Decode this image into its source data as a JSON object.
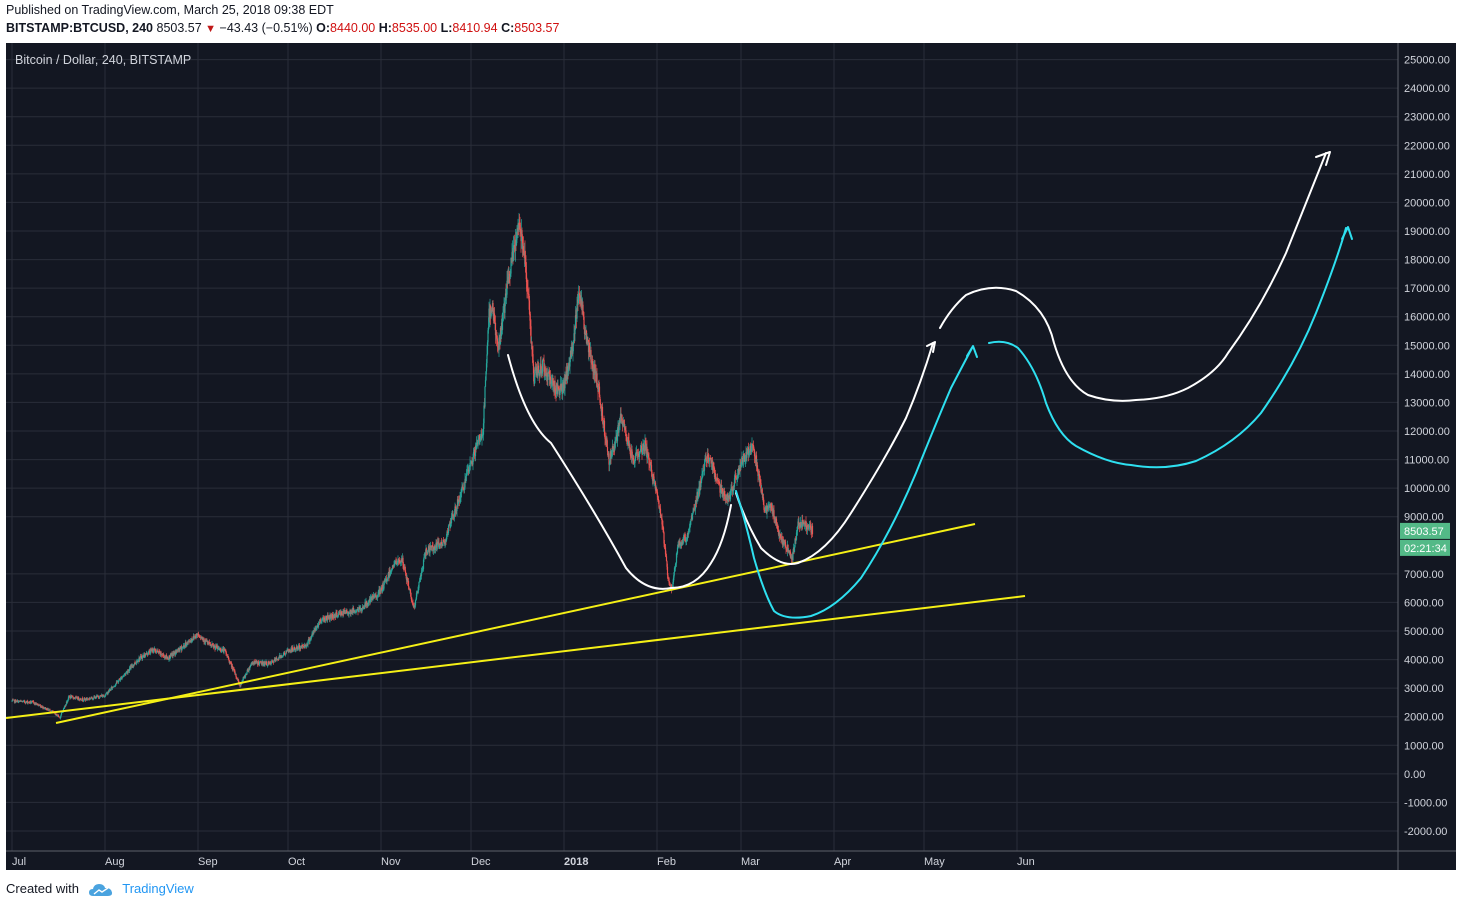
{
  "header": {
    "published": "Published on TradingView.com, March 25, 2018 09:38 EDT",
    "symbol": "BITSTAMP:BTCUSD, 240",
    "last": "8503.57",
    "change": "−43.43 (−0.51%)",
    "open_label": "O:",
    "open": "8440.00",
    "high_label": "H:",
    "high": "8535.00",
    "low_label": "L:",
    "low": "8410.94",
    "close_label": "C:",
    "close": "8503.57"
  },
  "footer": {
    "created_with": "Created with",
    "brand": "TradingView"
  },
  "colors": {
    "bg": "#131722",
    "up": "#26a69a",
    "down": "#ef5350",
    "yellow": "#f5f016",
    "cyan": "#2ee0f0",
    "white": "#ffffff",
    "price_tag": "#53b987"
  },
  "chart_data": {
    "type": "candlestick",
    "title": "Bitcoin / Dollar, 240, BITSTAMP",
    "ylim": [
      -2700,
      25300
    ],
    "y_ticks": [
      "25000.00",
      "24000.00",
      "23000.00",
      "22000.00",
      "21000.00",
      "20000.00",
      "19000.00",
      "18000.00",
      "17000.00",
      "16000.00",
      "15000.00",
      "14000.00",
      "13000.00",
      "12000.00",
      "11000.00",
      "10000.00",
      "9000.00",
      "7000.00",
      "6000.00",
      "5000.00",
      "4000.00",
      "3000.00",
      "2000.00",
      "1000.00",
      "0.00",
      "-1000.00",
      "-2000.00"
    ],
    "x_ticks": [
      {
        "label": "Jul",
        "date": "2017-07-01"
      },
      {
        "label": "Aug",
        "date": "2017-08-01"
      },
      {
        "label": "Sep",
        "date": "2017-09-01"
      },
      {
        "label": "Oct",
        "date": "2017-10-01"
      },
      {
        "label": "Nov",
        "date": "2017-11-01"
      },
      {
        "label": "Dec",
        "date": "2017-12-01"
      },
      {
        "label": "2018",
        "date": "2018-01-01",
        "bold": true
      },
      {
        "label": "Feb",
        "date": "2018-02-01"
      },
      {
        "label": "Mar",
        "date": "2018-03-01"
      },
      {
        "label": "Apr",
        "date": "2018-04-01"
      },
      {
        "label": "May",
        "date": "2018-05-01"
      },
      {
        "label": "Jun",
        "date": "2018-06-01"
      }
    ],
    "price_tag": "8503.57",
    "countdown": "02:21:34",
    "price_path": [
      [
        "2017-07-01",
        2550
      ],
      [
        "2017-07-08",
        2500
      ],
      [
        "2017-07-14",
        2200
      ],
      [
        "2017-07-17",
        1980
      ],
      [
        "2017-07-20",
        2700
      ],
      [
        "2017-07-25",
        2600
      ],
      [
        "2017-08-01",
        2750
      ],
      [
        "2017-08-05",
        3200
      ],
      [
        "2017-08-12",
        4000
      ],
      [
        "2017-08-17",
        4350
      ],
      [
        "2017-08-22",
        4050
      ],
      [
        "2017-08-27",
        4450
      ],
      [
        "2017-09-01",
        4900
      ],
      [
        "2017-09-05",
        4500
      ],
      [
        "2017-09-10",
        4300
      ],
      [
        "2017-09-15",
        3100
      ],
      [
        "2017-09-19",
        3900
      ],
      [
        "2017-09-25",
        3850
      ],
      [
        "2017-10-01",
        4300
      ],
      [
        "2017-10-07",
        4500
      ],
      [
        "2017-10-12",
        5400
      ],
      [
        "2017-10-18",
        5600
      ],
      [
        "2017-10-25",
        5750
      ],
      [
        "2017-11-01",
        6400
      ],
      [
        "2017-11-05",
        7300
      ],
      [
        "2017-11-08",
        7500
      ],
      [
        "2017-11-12",
        5800
      ],
      [
        "2017-11-16",
        7800
      ],
      [
        "2017-11-22",
        8100
      ],
      [
        "2017-11-28",
        9900
      ],
      [
        "2017-12-03",
        11500
      ],
      [
        "2017-12-05",
        12000
      ],
      [
        "2017-12-07",
        16000
      ],
      [
        "2017-12-08",
        16500
      ],
      [
        "2017-12-10",
        14800
      ],
      [
        "2017-12-13",
        17000
      ],
      [
        "2017-12-17",
        19300
      ],
      [
        "2017-12-19",
        18200
      ],
      [
        "2017-12-22",
        13900
      ],
      [
        "2017-12-25",
        14300
      ],
      [
        "2017-12-29",
        13500
      ],
      [
        "2018-01-01",
        13500
      ],
      [
        "2018-01-04",
        15000
      ],
      [
        "2018-01-06",
        17100
      ],
      [
        "2018-01-08",
        15500
      ],
      [
        "2018-01-10",
        14500
      ],
      [
        "2018-01-12",
        13800
      ],
      [
        "2018-01-16",
        11000
      ],
      [
        "2018-01-18",
        11500
      ],
      [
        "2018-01-20",
        12500
      ],
      [
        "2018-01-24",
        11000
      ],
      [
        "2018-01-28",
        11500
      ],
      [
        "2018-02-01",
        9800
      ],
      [
        "2018-02-03",
        8500
      ],
      [
        "2018-02-05",
        6600
      ],
      [
        "2018-02-06",
        6500
      ],
      [
        "2018-02-08",
        8000
      ],
      [
        "2018-02-11",
        8300
      ],
      [
        "2018-02-15",
        10000
      ],
      [
        "2018-02-18",
        11200
      ],
      [
        "2018-02-22",
        10000
      ],
      [
        "2018-02-25",
        9600
      ],
      [
        "2018-03-01",
        10900
      ],
      [
        "2018-03-03",
        11200
      ],
      [
        "2018-03-05",
        11600
      ],
      [
        "2018-03-09",
        9200
      ],
      [
        "2018-03-11",
        9400
      ],
      [
        "2018-03-14",
        8300
      ],
      [
        "2018-03-17",
        7800
      ],
      [
        "2018-03-18",
        7500
      ],
      [
        "2018-03-20",
        8700
      ],
      [
        "2018-03-22",
        8800
      ],
      [
        "2018-03-25",
        8503
      ]
    ]
  }
}
